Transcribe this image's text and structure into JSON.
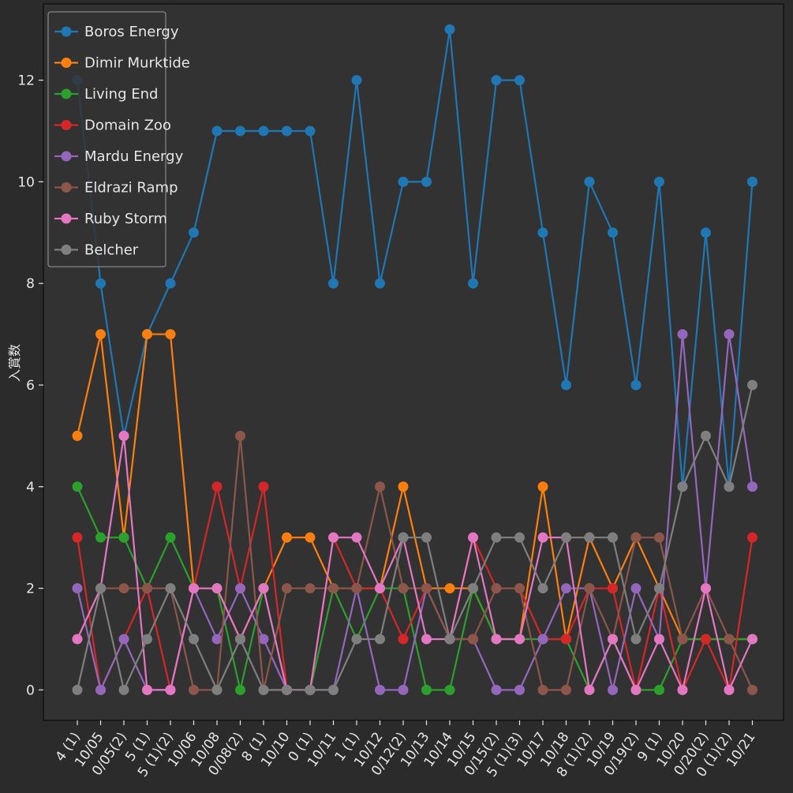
{
  "chart_data": {
    "type": "line",
    "title": "",
    "xlabel": "",
    "ylabel": "入賞数",
    "ylim": [
      -0.6,
      13.5
    ],
    "yticks": [
      0,
      2,
      4,
      6,
      8,
      10,
      12
    ],
    "grid": false,
    "legend_position": "top-left",
    "categories": [
      "4 (1)",
      "10/05",
      "0/05(2)",
      "5 (1)",
      "5 (1)(2)",
      "10/06",
      "10/08",
      "0/08(2)",
      "8 (1)",
      "10/10",
      "0 (1)",
      "10/11",
      "1 (1)",
      "10/12",
      "0/12(2)",
      "10/13",
      "10/14",
      "10/15",
      "0/15(2)",
      "5 (1)(3)",
      "10/17",
      "10/18",
      "8 (1)(2)",
      "10/19",
      "0/19(2)",
      "9 (1)",
      "10/20",
      "0/20(2)",
      "0 (1)(2)",
      "10/21"
    ],
    "series": [
      {
        "name": "Boros Energy",
        "color": "#1f77b4",
        "values": [
          12,
          8,
          5,
          7,
          8,
          9,
          11,
          11,
          11,
          11,
          11,
          8,
          12,
          8,
          10,
          10,
          13,
          8,
          12,
          12,
          9,
          6,
          10,
          9,
          6,
          10,
          4,
          9,
          4,
          10
        ]
      },
      {
        "name": "Dimir Murktide",
        "color": "#ff7f0e",
        "values": [
          5,
          7,
          3,
          7,
          7,
          2,
          2,
          1,
          2,
          3,
          3,
          2,
          2,
          2,
          4,
          2,
          2,
          2,
          1,
          1,
          4,
          1,
          3,
          2,
          3,
          2,
          1,
          1,
          1,
          1
        ]
      },
      {
        "name": "Living End",
        "color": "#2ca02c",
        "values": [
          4,
          3,
          3,
          2,
          3,
          2,
          2,
          0,
          2,
          0,
          0,
          2,
          1,
          2,
          2,
          0,
          0,
          2,
          1,
          1,
          1,
          1,
          0,
          1,
          0,
          0,
          1,
          1,
          1,
          1
        ]
      },
      {
        "name": "Domain Zoo",
        "color": "#d62728",
        "values": [
          3,
          0,
          1,
          2,
          0,
          2,
          4,
          2,
          4,
          0,
          0,
          3,
          2,
          2,
          1,
          2,
          1,
          3,
          2,
          2,
          1,
          1,
          2,
          2,
          0,
          2,
          0,
          1,
          0,
          3
        ]
      },
      {
        "name": "Mardu Energy",
        "color": "#9467bd",
        "values": [
          2,
          0,
          1,
          0,
          0,
          2,
          1,
          2,
          1,
          0,
          0,
          0,
          2,
          0,
          0,
          2,
          1,
          1,
          0,
          0,
          1,
          2,
          2,
          0,
          2,
          1,
          7,
          2,
          7,
          4
        ]
      },
      {
        "name": "Eldrazi Ramp",
        "color": "#8c564b",
        "values": [
          1,
          2,
          2,
          2,
          2,
          0,
          0,
          5,
          0,
          2,
          2,
          2,
          2,
          4,
          2,
          2,
          1,
          1,
          2,
          2,
          0,
          0,
          2,
          1,
          3,
          3,
          1,
          2,
          1,
          0
        ]
      },
      {
        "name": "Ruby Storm",
        "color": "#e377c2",
        "values": [
          1,
          2,
          5,
          0,
          0,
          2,
          2,
          1,
          2,
          0,
          0,
          3,
          3,
          2,
          3,
          1,
          1,
          3,
          1,
          1,
          3,
          3,
          0,
          1,
          0,
          1,
          0,
          2,
          0,
          1
        ]
      },
      {
        "name": "Belcher",
        "color": "#7f7f7f",
        "values": [
          0,
          2,
          0,
          1,
          2,
          1,
          0,
          1,
          0,
          0,
          0,
          0,
          1,
          1,
          3,
          3,
          1,
          2,
          3,
          3,
          2,
          3,
          3,
          3,
          1,
          2,
          4,
          5,
          4,
          6
        ]
      }
    ]
  }
}
